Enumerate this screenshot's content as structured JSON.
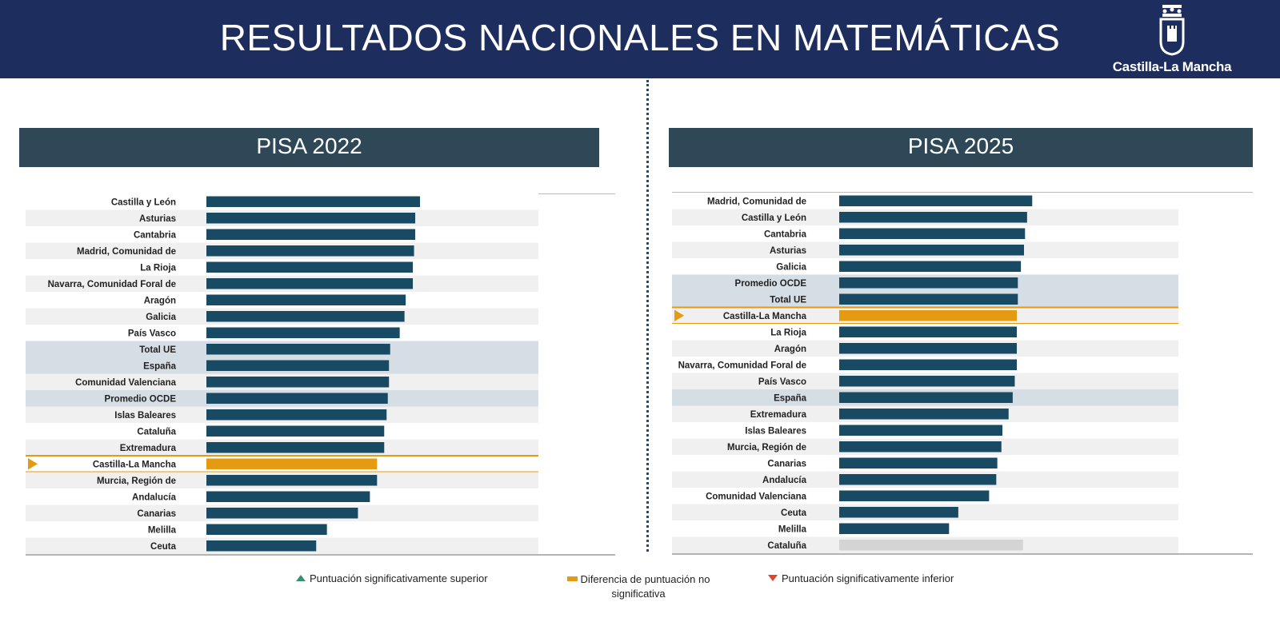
{
  "header": {
    "title": "RESULTADOS NACIONALES EN MATEMÁTICAS",
    "logo_text": "Castilla-La Mancha",
    "bg_color": "#1d2d5e"
  },
  "colors": {
    "bar": "#184a63",
    "highlight_bar": "#e49b12",
    "neutral_bar": "#d4d4d4",
    "band": "#d5dde5",
    "stripe": "#f0f0f0",
    "highlight_line": "#e49b12"
  },
  "chart_data": [
    {
      "type": "bar",
      "orientation": "horizontal",
      "title": "PISA 2022",
      "categories": [
        "Castilla y León",
        "Asturias",
        "Cantabria",
        "Madrid, Comunidad de",
        "La Rioja",
        "Navarra, Comunidad Foral de",
        "Aragón",
        "Galicia",
        "País Vasco",
        "Total UE",
        "España",
        "Comunidad Valenciana",
        "Promedio OCDE",
        "Islas Baleares",
        "Cataluña",
        "Extremadura",
        "Castilla-La Mancha",
        "Murcia, Región de",
        "Andalucía",
        "Canarias",
        "Melilla",
        "Ceuta"
      ],
      "values": [
        499,
        495,
        495,
        494,
        493,
        493,
        487,
        486,
        482,
        474,
        473,
        473,
        472,
        471,
        469,
        469,
        463,
        463,
        457,
        447,
        421,
        412
      ],
      "xlim": [
        320,
        560
      ],
      "highlight": "Castilla-La Mancha",
      "shaded": [
        "Total UE",
        "España",
        "Promedio OCDE"
      ]
    },
    {
      "type": "bar",
      "orientation": "horizontal",
      "title": "PISA 2025",
      "categories": [
        "Madrid, Comunidad de",
        "Castilla y León",
        "Cantabria",
        "Asturias",
        "Galicia",
        "Promedio OCDE",
        "Total UE",
        "Castilla-La Mancha",
        "La Rioja",
        "Aragón",
        "Navarra, Comunidad Foral de",
        "País Vasco",
        "España",
        "Extremadura",
        "Islas Baleares",
        "Murcia, Región de",
        "Canarias",
        "Andalucía",
        "Comunidad Valenciana",
        "Ceuta",
        "Melilla",
        "Cataluña"
      ],
      "values": [
        508,
        503,
        501,
        500,
        497,
        494,
        494,
        493,
        493,
        493,
        493,
        491,
        489,
        485,
        479,
        478,
        474,
        473,
        466,
        436,
        427,
        499
      ],
      "xlim": [
        320,
        560
      ],
      "highlight": "Castilla-La Mancha",
      "shaded": [
        "Promedio OCDE",
        "Total UE",
        "España"
      ],
      "neutral": [
        "Cataluña"
      ]
    }
  ],
  "legend": {
    "superior": "Puntuación significativamente superior",
    "no_significativa": "Diferencia de puntuación no significativa",
    "inferior": "Puntuación significativamente inferior"
  }
}
